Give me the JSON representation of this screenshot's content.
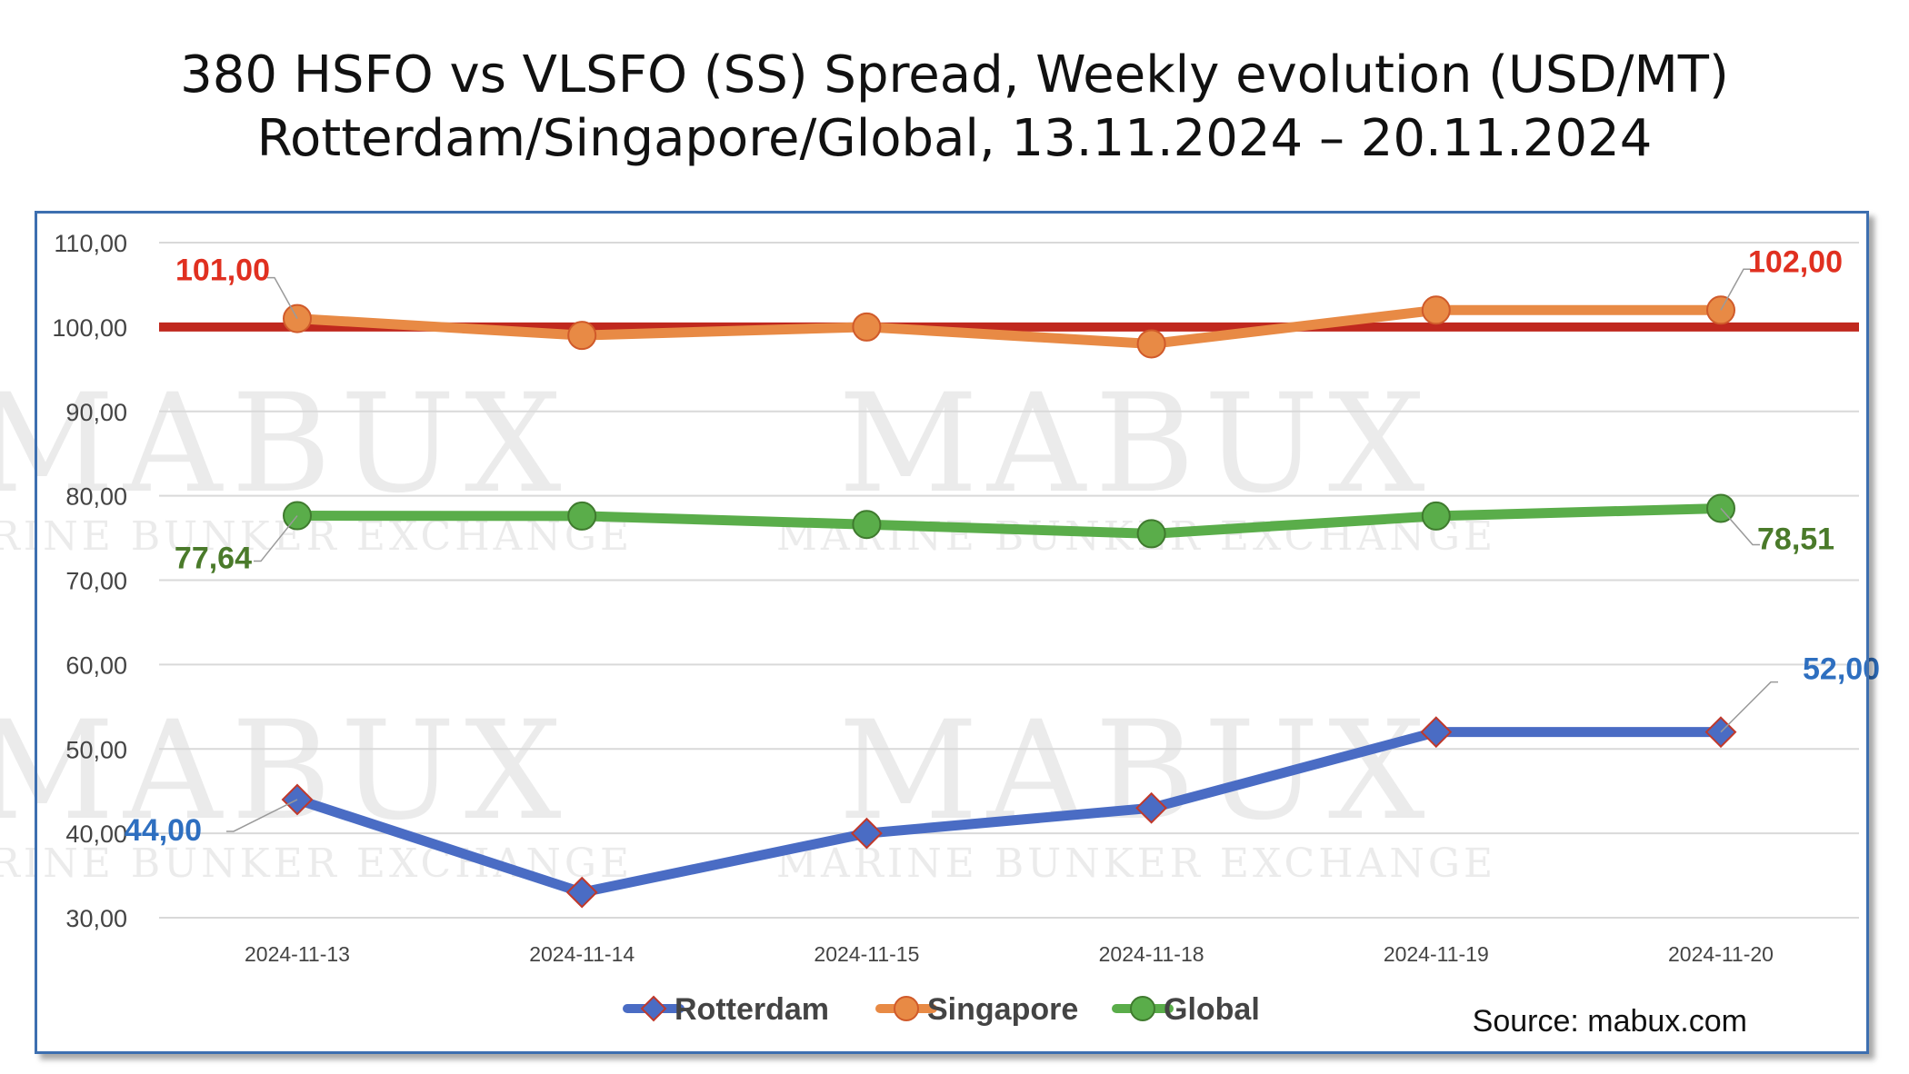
{
  "chart_data": {
    "type": "line",
    "title": "380 HSFO vs VLSFO (SS) Spread, Weekly evolution (USD/MT)",
    "subtitle": "Rotterdam/Singapore/Global, 13.11.2024 – 20.11.2024",
    "categories": [
      "2024-11-13",
      "2024-11-14",
      "2024-11-15",
      "2024-11-18",
      "2024-11-19",
      "2024-11-20"
    ],
    "ylim": [
      30,
      110
    ],
    "y_ticks": [
      "30,00",
      "40,00",
      "50,00",
      "60,00",
      "70,00",
      "80,00",
      "90,00",
      "100,00",
      "110,00"
    ],
    "y_tick_values": [
      30,
      40,
      50,
      60,
      70,
      80,
      90,
      100,
      110
    ],
    "grid": true,
    "legend_position": "bottom",
    "reference_line": {
      "value": 100,
      "color": "#c0281e"
    },
    "series": [
      {
        "name": "Rotterdam",
        "values": [
          44,
          33,
          40,
          43,
          52,
          52
        ],
        "color": "#4a6cc4",
        "marker": "diamond",
        "marker_edge": "#c0392b",
        "labels": {
          "first": "44,00",
          "last": "52,00"
        },
        "label_color": "#2e6fc0"
      },
      {
        "name": "Singapore",
        "values": [
          101,
          99,
          100,
          98,
          102,
          102
        ],
        "color": "#e88a45",
        "marker": "circle",
        "marker_edge": "#d05a2a",
        "labels": {
          "first": "101,00",
          "last": "102,00"
        },
        "label_color": "#e03020"
      },
      {
        "name": "Global",
        "values": [
          77.64,
          77.6,
          76.6,
          75.5,
          77.6,
          78.51
        ],
        "color": "#5aad4a",
        "marker": "circle",
        "marker_edge": "#3f7a2e",
        "labels": {
          "first": "77,64",
          "last": "78,51"
        },
        "label_color": "#4a7a2a"
      }
    ]
  },
  "source": "Source: mabux.com",
  "watermark": {
    "brand": "MABUX",
    "tagline": "MARINE BUNKER EXCHANGE"
  }
}
